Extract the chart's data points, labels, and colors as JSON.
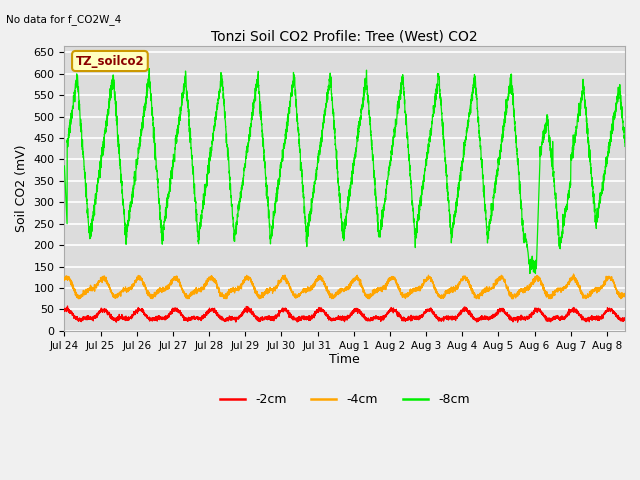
{
  "title": "Tonzi Soil CO2 Profile: Tree (West) CO2",
  "ylabel": "Soil CO2 (mV)",
  "xlabel": "Time",
  "annotation": "No data for f_CO2W_4",
  "legend_label": "TZ_soilco2",
  "legend_entries": [
    "-2cm",
    "-4cm",
    "-8cm"
  ],
  "legend_colors": [
    "#ff0000",
    "#ffa500",
    "#00ee00"
  ],
  "ylim": [
    0,
    665
  ],
  "yticks": [
    0,
    50,
    100,
    150,
    200,
    250,
    300,
    350,
    400,
    450,
    500,
    550,
    600,
    650
  ],
  "line_color_red": "#ff0000",
  "line_color_orange": "#ffa500",
  "line_color_green": "#00ee00",
  "bg_color": "#f0f0f0",
  "plot_bg": "#dcdcdc",
  "grid_color": "#ffffff",
  "n_days": 15.5,
  "tick_labels": [
    "Jul 24",
    "Jul 25",
    "Jul 26",
    "Jul 27",
    "Jul 28",
    "Jul 29",
    "Jul 30",
    "Jul 31",
    "Aug 1",
    "Aug 2",
    "Aug 3",
    "Aug 4",
    "Aug 5",
    "Aug 6",
    "Aug 7",
    "Aug 8"
  ]
}
